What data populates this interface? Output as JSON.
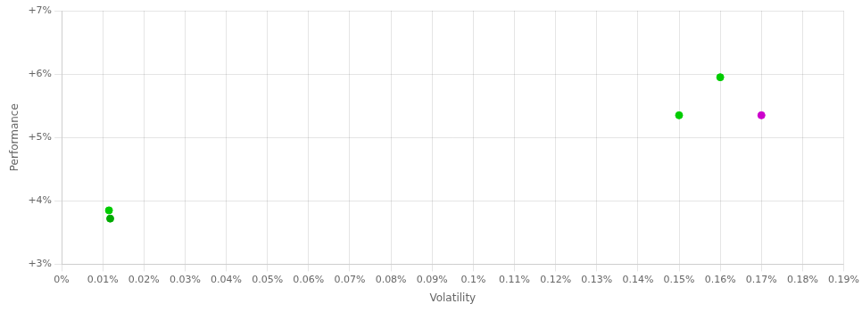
{
  "chart_data": {
    "type": "scatter",
    "x_label": "Volatility",
    "y_label": "Performance",
    "x": [
      0.0115,
      0.0118,
      0.15,
      0.16,
      0.17
    ],
    "values": [
      0.0385,
      0.0372,
      0.0535,
      0.0595,
      0.0535
    ],
    "colors": [
      "#00cc00",
      "#00aa00",
      "#00cc00",
      "#00cc00",
      "#cc00cc"
    ],
    "marker": "circle",
    "xlim": [
      0.0,
      0.19
    ],
    "ylim": [
      0.03,
      0.07
    ],
    "xticks": [
      {
        "value": 0.0,
        "label": "0%"
      },
      {
        "value": 0.01,
        "label": "0.01%"
      },
      {
        "value": 0.02,
        "label": "0.02%"
      },
      {
        "value": 0.03,
        "label": "0.03%"
      },
      {
        "value": 0.04,
        "label": "0.04%"
      },
      {
        "value": 0.05,
        "label": "0.05%"
      },
      {
        "value": 0.06,
        "label": "0.06%"
      },
      {
        "value": 0.07,
        "label": "0.07%"
      },
      {
        "value": 0.08,
        "label": "0.08%"
      },
      {
        "value": 0.09,
        "label": "0.09%"
      },
      {
        "value": 0.1,
        "label": "0.1%"
      },
      {
        "value": 0.11,
        "label": "0.11%"
      },
      {
        "value": 0.12,
        "label": "0.12%"
      },
      {
        "value": 0.13,
        "label": "0.13%"
      },
      {
        "value": 0.14,
        "label": "0.14%"
      },
      {
        "value": 0.15,
        "label": "0.15%"
      },
      {
        "value": 0.16,
        "label": "0.16%"
      },
      {
        "value": 0.17,
        "label": "0.17%"
      },
      {
        "value": 0.18,
        "label": "0.18%"
      },
      {
        "value": 0.19,
        "label": "0.19%"
      }
    ],
    "yticks": [
      {
        "value": 0.03,
        "label": "+3%"
      },
      {
        "value": 0.04,
        "label": "+4%"
      },
      {
        "value": 0.05,
        "label": "+5%"
      },
      {
        "value": 0.06,
        "label": "+6%"
      },
      {
        "value": 0.07,
        "label": "+7%"
      }
    ],
    "grid": true
  }
}
